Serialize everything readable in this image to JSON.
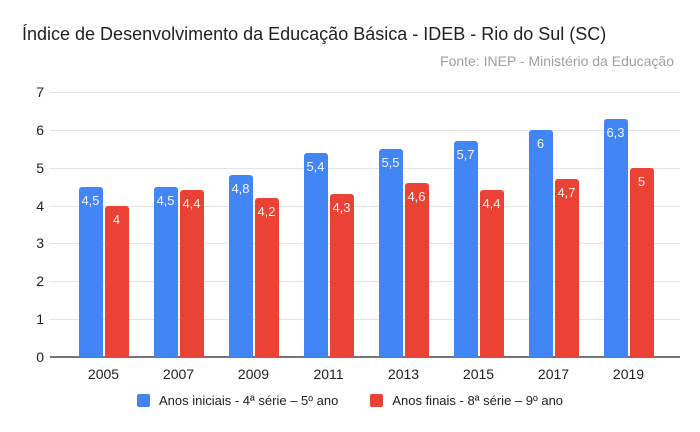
{
  "header": {
    "title": "Índice de Desenvolvimento da Educação Básica - IDEB - Rio do Sul (SC)",
    "source": "Fonte: INEP - Ministério da Educação"
  },
  "chart_data": {
    "type": "bar",
    "title": "Índice de Desenvolvimento da Educação Básica - IDEB - Rio do Sul (SC)",
    "subtitle": "Fonte: INEP - Ministério da Educação",
    "categories": [
      "2005",
      "2007",
      "2009",
      "2011",
      "2013",
      "2015",
      "2017",
      "2019"
    ],
    "series": [
      {
        "name": "Anos iniciais - 4ª série – 5º ano",
        "color": "#4285F4",
        "values": [
          4.5,
          4.5,
          4.8,
          5.4,
          5.5,
          5.7,
          6,
          6.3
        ],
        "labels": [
          "4,5",
          "4,5",
          "4,8",
          "5,4",
          "5,5",
          "5,7",
          "6",
          "6,3"
        ]
      },
      {
        "name": "Anos finais - 8ª série – 9º ano",
        "color": "#EA4335",
        "values": [
          4,
          4.4,
          4.2,
          4.3,
          4.6,
          4.4,
          4.7,
          5
        ],
        "labels": [
          "4",
          "4,4",
          "4,2",
          "4,3",
          "4,6",
          "4,4",
          "4,7",
          "5"
        ]
      }
    ],
    "xlabel": "",
    "ylabel": "",
    "ylim": [
      0,
      7
    ],
    "yticks": [
      0,
      1,
      2,
      3,
      4,
      5,
      6,
      7
    ],
    "grid": true,
    "legend_position": "bottom",
    "colors": {
      "gridline": "#e3e3e3",
      "baseline": "#757575",
      "axis_text": "#202124",
      "title_text": "#202124",
      "source_text": "#9e9e9e",
      "background": "#ffffff"
    }
  }
}
